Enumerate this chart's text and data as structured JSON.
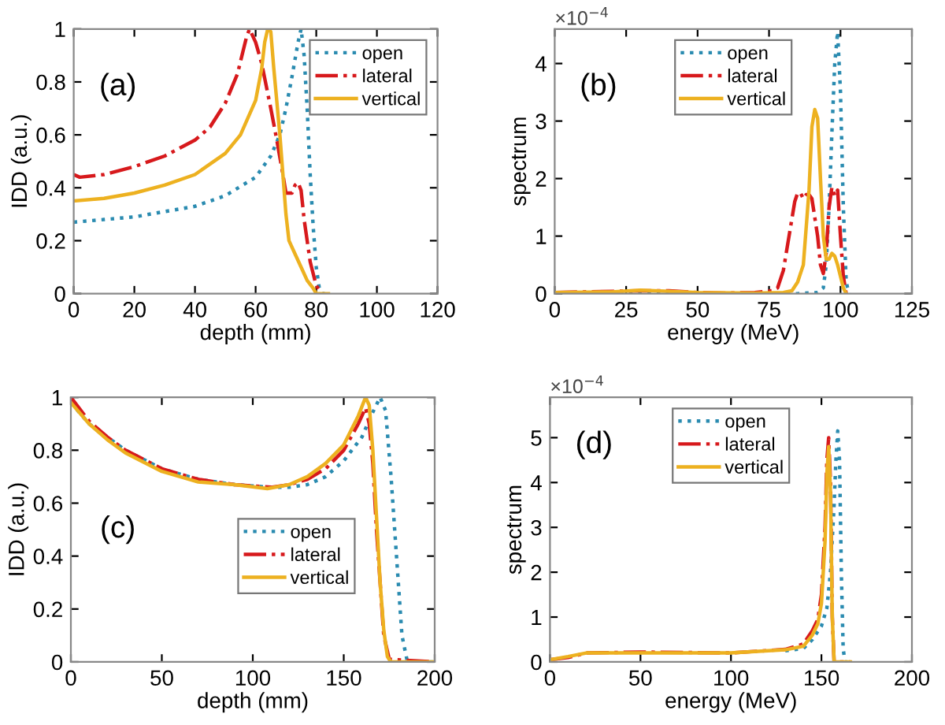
{
  "chart_data": [
    {
      "type": "line",
      "xlabel": "depth (mm)",
      "ylabel": "IDD (a.u.)",
      "xlim": [
        0,
        120
      ],
      "xticks": [
        0,
        20,
        40,
        60,
        80,
        100,
        120
      ],
      "ylim": [
        0,
        1
      ],
      "yticks": [
        0,
        0.2,
        0.4,
        0.6,
        0.8,
        1
      ],
      "legend": "top right",
      "grid": false,
      "annotations": [
        "(a)"
      ],
      "series": [
        {
          "name": "open",
          "color": "#2a8bb0",
          "line_style": "dotted",
          "x": [
            0,
            10,
            20,
            30,
            40,
            50,
            60,
            65,
            68,
            70,
            72,
            74,
            75,
            76,
            77,
            78,
            79,
            80,
            81,
            82,
            84
          ],
          "values": [
            0.27,
            0.28,
            0.29,
            0.31,
            0.33,
            0.37,
            0.44,
            0.52,
            0.6,
            0.7,
            0.82,
            0.95,
            1.0,
            0.9,
            0.7,
            0.45,
            0.25,
            0.1,
            0.02,
            0,
            0
          ]
        },
        {
          "name": "lateral",
          "color": "#d7191c",
          "line_style": "dashdot",
          "x": [
            0,
            2,
            10,
            20,
            30,
            40,
            45,
            50,
            54,
            57,
            58,
            60,
            62,
            65,
            67,
            69,
            70,
            72,
            73,
            74,
            75,
            76,
            78,
            80,
            82
          ],
          "values": [
            0.45,
            0.44,
            0.45,
            0.48,
            0.52,
            0.58,
            0.63,
            0.72,
            0.83,
            0.97,
            1.0,
            0.95,
            0.87,
            0.7,
            0.58,
            0.45,
            0.38,
            0.38,
            0.41,
            0.42,
            0.39,
            0.28,
            0.12,
            0.03,
            0
          ]
        },
        {
          "name": "vertical",
          "color": "#edb120",
          "line_style": "solid",
          "x": [
            0,
            10,
            20,
            30,
            40,
            50,
            55,
            60,
            62,
            63,
            64,
            65,
            66,
            68,
            69,
            70,
            71,
            73,
            75,
            77,
            79,
            80,
            84
          ],
          "values": [
            0.35,
            0.36,
            0.38,
            0.41,
            0.45,
            0.53,
            0.6,
            0.73,
            0.85,
            0.95,
            1.0,
            0.99,
            0.85,
            0.6,
            0.45,
            0.3,
            0.2,
            0.15,
            0.1,
            0.05,
            0.02,
            0,
            0
          ]
        }
      ]
    },
    {
      "type": "line",
      "xlabel": "energy (MeV)",
      "ylabel": "spectrum",
      "xlim": [
        0,
        125
      ],
      "xticks": [
        0,
        25,
        50,
        75,
        100,
        125
      ],
      "ylim": [
        0,
        4.6
      ],
      "yticks": [
        0,
        1,
        2,
        3,
        4
      ],
      "legend": "top",
      "grid": false,
      "annotations": [
        "(b)",
        "×10$^{−4}$"
      ],
      "series": [
        {
          "name": "open",
          "color": "#2a8bb0",
          "line_style": "dotted",
          "x": [
            0,
            85,
            92,
            94,
            95,
            96,
            97,
            98,
            99,
            100,
            101,
            102,
            103
          ],
          "values": [
            0,
            0,
            0.02,
            0.1,
            0.5,
            1.5,
            2.8,
            4.0,
            4.55,
            3.5,
            1.5,
            0.2,
            0
          ]
        },
        {
          "name": "lateral",
          "color": "#d7191c",
          "line_style": "dashdot",
          "x": [
            0,
            10,
            30,
            40,
            50,
            60,
            70,
            76,
            78,
            80,
            82,
            84,
            85,
            86,
            87,
            88,
            89,
            90,
            92,
            93,
            94,
            95,
            96,
            97,
            98,
            99,
            100,
            101,
            102
          ],
          "values": [
            0.02,
            0.03,
            0.05,
            0.05,
            0.02,
            0.01,
            0.02,
            0.05,
            0.1,
            0.4,
            1.0,
            1.6,
            1.75,
            1.75,
            1.65,
            1.72,
            1.72,
            1.65,
            1.0,
            0.5,
            0.35,
            0.7,
            1.5,
            1.85,
            1.7,
            1.8,
            1.0,
            0.3,
            0
          ]
        },
        {
          "name": "vertical",
          "color": "#edb120",
          "line_style": "solid",
          "x": [
            0,
            20,
            30,
            50,
            70,
            80,
            83,
            85,
            87,
            89,
            90,
            91,
            92,
            93,
            94,
            95,
            96,
            97,
            98,
            99,
            100,
            101,
            102
          ],
          "values": [
            0.02,
            0.03,
            0.06,
            0.02,
            0.01,
            0.02,
            0.05,
            0.2,
            0.5,
            1.8,
            2.9,
            3.2,
            3.05,
            2.0,
            1.0,
            0.6,
            0.6,
            0.7,
            0.65,
            0.5,
            0.3,
            0.1,
            0
          ]
        }
      ]
    },
    {
      "type": "line",
      "xlabel": "depth (mm)",
      "ylabel": "IDD (a.u.)",
      "xlim": [
        0,
        200
      ],
      "xticks": [
        0,
        50,
        100,
        150,
        200
      ],
      "ylim": [
        0,
        1
      ],
      "yticks": [
        0,
        0.2,
        0.4,
        0.6,
        0.8,
        1
      ],
      "legend": "center",
      "grid": false,
      "annotations": [
        "(c)"
      ],
      "series": [
        {
          "name": "open",
          "color": "#2a8bb0",
          "line_style": "dotted",
          "x": [
            0,
            10,
            20,
            30,
            50,
            70,
            90,
            110,
            120,
            130,
            140,
            150,
            160,
            165,
            170,
            173,
            176,
            179,
            182,
            185,
            200
          ],
          "values": [
            0.98,
            0.9,
            0.85,
            0.8,
            0.73,
            0.69,
            0.67,
            0.66,
            0.66,
            0.67,
            0.7,
            0.76,
            0.85,
            0.93,
            1.0,
            0.95,
            0.7,
            0.4,
            0.1,
            0,
            0
          ]
        },
        {
          "name": "lateral",
          "color": "#d7191c",
          "line_style": "dashdot",
          "x": [
            0,
            10,
            20,
            30,
            50,
            70,
            90,
            110,
            120,
            130,
            140,
            150,
            158,
            162,
            164,
            166,
            168,
            170,
            172,
            175,
            200
          ],
          "values": [
            1.0,
            0.91,
            0.85,
            0.8,
            0.73,
            0.69,
            0.67,
            0.66,
            0.67,
            0.69,
            0.73,
            0.8,
            0.9,
            0.96,
            0.9,
            0.75,
            0.5,
            0.3,
            0.1,
            0.01,
            0
          ]
        },
        {
          "name": "vertical",
          "color": "#edb120",
          "line_style": "solid",
          "x": [
            0,
            10,
            20,
            30,
            50,
            70,
            90,
            108,
            120,
            130,
            140,
            150,
            158,
            162,
            164,
            166,
            168,
            170,
            172,
            174,
            176,
            200
          ],
          "values": [
            0.98,
            0.9,
            0.84,
            0.79,
            0.72,
            0.68,
            0.67,
            0.655,
            0.67,
            0.7,
            0.75,
            0.82,
            0.93,
            1.0,
            0.97,
            0.8,
            0.55,
            0.3,
            0.12,
            0.02,
            0,
            0
          ]
        }
      ]
    },
    {
      "type": "line",
      "xlabel": "energy (MeV)",
      "ylabel": "spectrum",
      "xlim": [
        0,
        200
      ],
      "xticks": [
        0,
        50,
        100,
        150,
        200
      ],
      "ylim": [
        0,
        5.9
      ],
      "yticks": [
        0,
        1,
        2,
        3,
        4,
        5
      ],
      "legend": "top",
      "grid": false,
      "annotations": [
        "(d)",
        "×10$^{−4}$"
      ],
      "series": [
        {
          "name": "open",
          "color": "#2a8bb0",
          "line_style": "dotted",
          "x": [
            130,
            140,
            145,
            150,
            153,
            155,
            157,
            158,
            159,
            160,
            161,
            162,
            163,
            166
          ],
          "values": [
            0.25,
            0.3,
            0.5,
            0.8,
            1.2,
            2,
            3.5,
            4.5,
            5.15,
            4.5,
            2,
            0.3,
            0,
            0
          ]
        },
        {
          "name": "lateral",
          "color": "#d7191c",
          "line_style": "dashdot",
          "x": [
            0,
            10,
            20,
            50,
            100,
            130,
            140,
            145,
            148,
            150,
            152,
            153,
            154,
            155,
            156,
            157,
            166
          ],
          "values": [
            0.05,
            0.1,
            0.2,
            0.22,
            0.2,
            0.28,
            0.4,
            0.7,
            0.95,
            1.5,
            3,
            4.5,
            5.0,
            4.0,
            1,
            0,
            0
          ]
        },
        {
          "name": "vertical",
          "color": "#edb120",
          "line_style": "solid",
          "x": [
            0,
            10,
            20,
            50,
            100,
            130,
            140,
            145,
            148,
            150,
            152,
            153,
            154,
            155,
            156,
            157,
            166
          ],
          "values": [
            0.05,
            0.12,
            0.2,
            0.2,
            0.2,
            0.27,
            0.35,
            0.6,
            0.85,
            1.3,
            2.7,
            4.2,
            4.8,
            3.8,
            1,
            0,
            0
          ]
        }
      ]
    }
  ]
}
